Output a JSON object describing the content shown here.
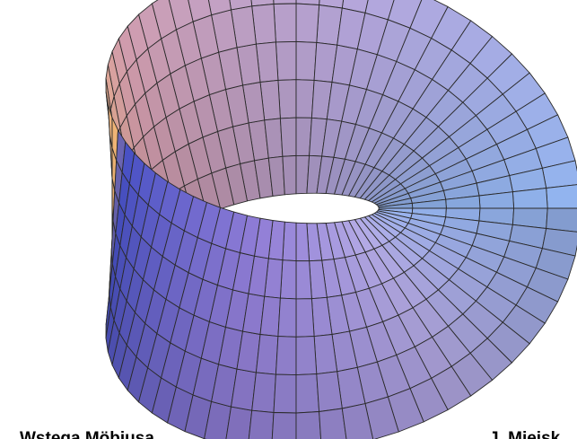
{
  "caption": {
    "left": "Wstęga Möbiusa",
    "right": "J. Miejsk"
  }
}
